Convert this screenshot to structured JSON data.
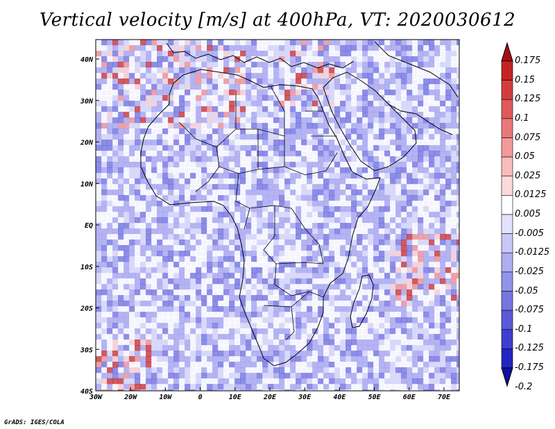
{
  "title": "Vertical velocity [m/s] at 400hPa, VT: 2020030612",
  "credit": "GrADS: IGES/COLA",
  "map": {
    "lon_ticks": [
      "30W",
      "20W",
      "10W",
      "0",
      "10E",
      "20E",
      "30E",
      "40E",
      "50E",
      "60E",
      "70E"
    ],
    "lat_ticks": [
      "40N",
      "30N",
      "20N",
      "10N",
      "EQ",
      "10S",
      "20S",
      "30S",
      "40S"
    ]
  },
  "colorbar": {
    "levels": [
      "0.175",
      "0.15",
      "0.125",
      "0.1",
      "0.075",
      "0.05",
      "0.025",
      "0.0125",
      "0.005",
      "-0.005",
      "-0.0125",
      "-0.025",
      "-0.05",
      "-0.075",
      "-0.1",
      "-0.125",
      "-0.175",
      "-0.2"
    ],
    "colors": [
      "#a81010",
      "#c42424",
      "#d43c3c",
      "#e05a5a",
      "#ea7878",
      "#f29a9a",
      "#f8bcbc",
      "#fcdada",
      "#ffffff",
      "#e2e2fb",
      "#c8c8f4",
      "#aeaef0",
      "#9292ea",
      "#7676e0",
      "#5a5ad8",
      "#3e3ed0",
      "#2424c0",
      "#1010a0"
    ]
  },
  "field_colors": {
    "neutral": "#ffffff",
    "blue_pale": "#d8d8fa",
    "blue_mid": "#a8a8f0",
    "blue_dark": "#7474e0",
    "red_pale": "#fad2d2",
    "red_mid": "#f09090",
    "red_dark": "#cc3030"
  }
}
